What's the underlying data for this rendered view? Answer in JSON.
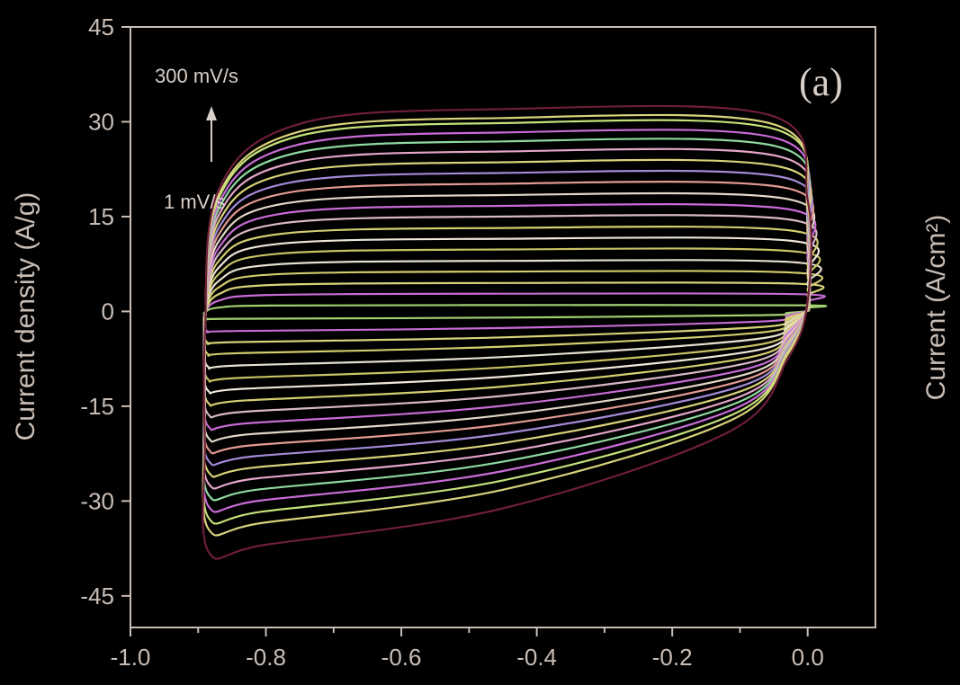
{
  "chart_data": {
    "type": "line",
    "panel_label": "(a)",
    "ylabel": "Current density (A/g)",
    "ylabel_right": "Current (A/cm²)",
    "xlim": [
      -1.0,
      0.1
    ],
    "ylim": [
      -50,
      45
    ],
    "x_ticks": [
      "-1.0",
      "-0.8",
      "-0.6",
      "-0.4",
      "-0.2",
      "0.0"
    ],
    "y_ticks": [
      "45",
      "30",
      "15",
      "0",
      "-15",
      "-30",
      "-45"
    ],
    "annotations": {
      "top": "300 mV/s",
      "bottom": "1 mV/s"
    },
    "potential_window": [
      -0.89,
      0.0
    ],
    "curves": [
      {
        "upper": 1.0,
        "lower": -1.2,
        "color": "#a2d070"
      },
      {
        "upper": 2.8,
        "lower": -3.2,
        "color": "#c86bd6"
      },
      {
        "upper": 4.5,
        "lower": -5.0,
        "color": "#d9d27a"
      },
      {
        "upper": 6.3,
        "lower": -6.8,
        "color": "#d3cc6e"
      },
      {
        "upper": 8.0,
        "lower": -8.8,
        "color": "#e6e0d0"
      },
      {
        "upper": 9.8,
        "lower": -10.8,
        "color": "#c9c266"
      },
      {
        "upper": 11.5,
        "lower": -12.6,
        "color": "#efe7da"
      },
      {
        "upper": 13.2,
        "lower": -14.5,
        "color": "#d4cd70"
      },
      {
        "upper": 15.0,
        "lower": -16.3,
        "color": "#d8b8c8"
      },
      {
        "upper": 16.7,
        "lower": -18.2,
        "color": "#c86bd6"
      },
      {
        "upper": 18.4,
        "lower": -20.0,
        "color": "#e3d8c8"
      },
      {
        "upper": 20.2,
        "lower": -21.8,
        "color": "#e39a93"
      },
      {
        "upper": 21.9,
        "lower": -23.6,
        "color": "#a48bd8"
      },
      {
        "upper": 23.6,
        "lower": -25.4,
        "color": "#d9d27a"
      },
      {
        "upper": 25.3,
        "lower": -27.2,
        "color": "#e4a5c8"
      },
      {
        "upper": 26.9,
        "lower": -29.0,
        "color": "#8fd8a0"
      },
      {
        "upper": 28.3,
        "lower": -30.8,
        "color": "#c86bd6"
      },
      {
        "upper": 29.8,
        "lower": -32.6,
        "color": "#c4e07a"
      },
      {
        "upper": 30.6,
        "lower": -34.4,
        "color": "#d9d27a"
      },
      {
        "upper": 32.0,
        "lower": -38.0,
        "color": "#6e1e3a"
      }
    ]
  }
}
